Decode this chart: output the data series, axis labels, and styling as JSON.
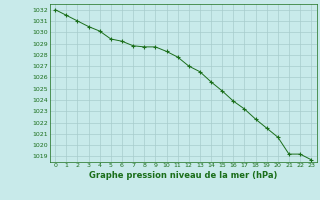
{
  "x": [
    0,
    1,
    2,
    3,
    4,
    5,
    6,
    7,
    8,
    9,
    10,
    11,
    12,
    13,
    14,
    15,
    16,
    17,
    18,
    19,
    20,
    21,
    22,
    23
  ],
  "y": [
    1032.0,
    1031.5,
    1031.0,
    1030.5,
    1030.1,
    1029.4,
    1029.2,
    1028.8,
    1028.7,
    1028.7,
    1028.3,
    1027.8,
    1027.0,
    1026.5,
    1025.6,
    1024.8,
    1023.9,
    1023.2,
    1022.3,
    1021.5,
    1020.7,
    1019.2,
    1019.2,
    1018.7
  ],
  "line_color": "#1a6e1a",
  "marker": "+",
  "marker_color": "#1a6e1a",
  "bg_color": "#c8eaea",
  "grid_color": "#a8cccc",
  "text_color": "#1a6e1a",
  "xlabel": "Graphe pression niveau de la mer (hPa)",
  "ylim_min": 1018.5,
  "ylim_max": 1032.5,
  "xlim_min": -0.5,
  "xlim_max": 23.5,
  "yticks": [
    1019,
    1020,
    1021,
    1022,
    1023,
    1024,
    1025,
    1026,
    1027,
    1028,
    1029,
    1030,
    1031,
    1032
  ],
  "xticks": [
    0,
    1,
    2,
    3,
    4,
    5,
    6,
    7,
    8,
    9,
    10,
    11,
    12,
    13,
    14,
    15,
    16,
    17,
    18,
    19,
    20,
    21,
    22,
    23
  ],
  "tick_fontsize": 4.5,
  "xlabel_fontsize": 6.0,
  "marker_size": 3.0,
  "linewidth": 0.7
}
